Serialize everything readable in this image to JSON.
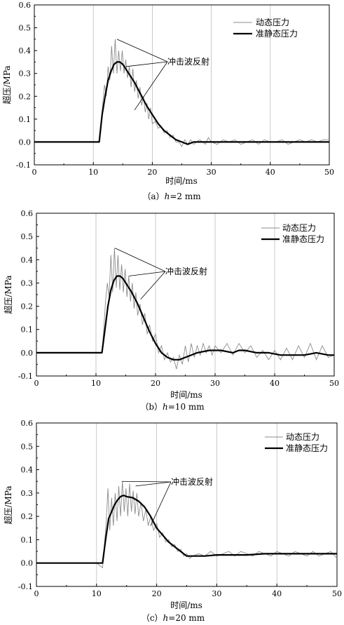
{
  "chart_data": [
    {
      "type": "line",
      "caption": "（a）h=2 mm",
      "caption_prefix": "（a）",
      "caption_var": "h",
      "caption_value": "=2 mm",
      "xlabel": "时间/ms",
      "ylabel": "超压/MPa",
      "xlim": [
        0,
        50
      ],
      "ylim": [
        -0.1,
        0.6
      ],
      "xticks": [
        0,
        10,
        20,
        30,
        40,
        50
      ],
      "yticks": [
        -0.1,
        0.0,
        0.1,
        0.2,
        0.3,
        0.4,
        0.5,
        0.6
      ],
      "grid": "vertical",
      "legend_position": "top-right",
      "annotation": "冲击波反射",
      "series": [
        {
          "name": "动态压力",
          "color": "#8c8c8c",
          "x": [
            0,
            5,
            10,
            11,
            11.3,
            11.6,
            11.9,
            12.2,
            12.5,
            12.8,
            13.1,
            13.4,
            13.7,
            14.0,
            14.3,
            14.6,
            14.9,
            15.2,
            15.5,
            15.8,
            16.1,
            16.4,
            16.7,
            17.0,
            17.3,
            17.6,
            17.9,
            18.2,
            18.5,
            18.8,
            19.1,
            19.4,
            19.7,
            20.0,
            20.5,
            21.0,
            21.5,
            22.0,
            22.5,
            23.0,
            23.5,
            24.0,
            24.5,
            25.0,
            25.5,
            26.0,
            26.5,
            27.0,
            27.5,
            28.0,
            28.5,
            29.0,
            29.5,
            30.0,
            31.0,
            32.0,
            33.0,
            34.0,
            35.0,
            36.0,
            37.0,
            38.0,
            39.0,
            40.0,
            41.0,
            42.0,
            43.0,
            44.0,
            45.0,
            46.0,
            47.0,
            48.0,
            49.0,
            50.0
          ],
          "y": [
            0.0,
            0.0,
            0.0,
            0.0,
            0.08,
            0.17,
            0.25,
            0.2,
            0.33,
            0.27,
            0.42,
            0.3,
            0.45,
            0.3,
            0.4,
            0.31,
            0.4,
            0.3,
            0.36,
            0.28,
            0.33,
            0.24,
            0.32,
            0.22,
            0.27,
            0.19,
            0.24,
            0.16,
            0.2,
            0.13,
            0.17,
            0.1,
            0.15,
            0.08,
            0.09,
            0.06,
            0.07,
            0.04,
            0.05,
            0.02,
            0.03,
            0.0,
            0.0,
            -0.02,
            0.01,
            -0.01,
            0.01,
            -0.01,
            0.0,
            0.01,
            0.0,
            -0.01,
            0.02,
            0.0,
            -0.01,
            0.01,
            0.0,
            0.01,
            -0.01,
            0.0,
            0.01,
            -0.01,
            0.01,
            0.0,
            0.0,
            0.01,
            -0.01,
            0.0,
            0.01,
            0.0,
            0.01,
            0.0,
            0.01,
            0.01
          ]
        },
        {
          "name": "准静态压力",
          "color": "#000000",
          "x": [
            0,
            5,
            10,
            11,
            11.5,
            12,
            12.5,
            13,
            13.5,
            14,
            14.5,
            15,
            16,
            17,
            18,
            19,
            20,
            21,
            22,
            23,
            24,
            25,
            26,
            27,
            28,
            30,
            32,
            35,
            40,
            45,
            50
          ],
          "y": [
            0.0,
            0.0,
            0.0,
            0.0,
            0.12,
            0.2,
            0.27,
            0.31,
            0.34,
            0.35,
            0.35,
            0.34,
            0.3,
            0.26,
            0.21,
            0.16,
            0.12,
            0.08,
            0.05,
            0.03,
            0.01,
            0.0,
            -0.01,
            0.0,
            0.0,
            0.0,
            0.0,
            0.0,
            0.0,
            0.0,
            0.0
          ]
        }
      ]
    },
    {
      "type": "line",
      "caption": "（b）h=10 mm",
      "caption_prefix": "（b）",
      "caption_var": "h",
      "caption_value": "=10 mm",
      "xlabel": "时间/ms",
      "ylabel": "超压/MPa",
      "xlim": [
        0,
        50
      ],
      "ylim": [
        -0.1,
        0.6
      ],
      "xticks": [
        0,
        10,
        20,
        30,
        40,
        50
      ],
      "yticks": [
        -0.1,
        0.0,
        0.1,
        0.2,
        0.3,
        0.4,
        0.5,
        0.6
      ],
      "grid": "vertical",
      "legend_position": "top-right",
      "annotation": "冲击波反射",
      "series": [
        {
          "name": "动态压力",
          "color": "#8c8c8c",
          "x": [
            0,
            5,
            10,
            11,
            11.3,
            11.6,
            11.9,
            12.2,
            12.5,
            12.8,
            13.1,
            13.4,
            13.7,
            14.0,
            14.3,
            14.6,
            14.9,
            15.2,
            15.5,
            15.8,
            16.1,
            16.4,
            16.7,
            17.0,
            17.4,
            17.8,
            18.2,
            18.6,
            19.0,
            19.5,
            20.0,
            20.5,
            21.0,
            21.5,
            22.0,
            22.5,
            23.0,
            23.5,
            24.0,
            24.5,
            25.0,
            25.5,
            26.0,
            26.5,
            27.0,
            27.5,
            28.0,
            28.5,
            29.0,
            29.5,
            30.0,
            31.0,
            32.0,
            33.0,
            34.0,
            35.0,
            36.0,
            37.0,
            38.0,
            39.0,
            40.0,
            41.0,
            42.0,
            43.0,
            44.0,
            45.0,
            46.0,
            47.0,
            48.0,
            49.0,
            50.0
          ],
          "y": [
            0.0,
            0.0,
            0.0,
            0.0,
            0.1,
            0.22,
            0.3,
            0.24,
            0.42,
            0.26,
            0.45,
            0.28,
            0.42,
            0.27,
            0.38,
            0.26,
            0.36,
            0.24,
            0.33,
            0.22,
            0.3,
            0.19,
            0.26,
            0.16,
            0.21,
            0.12,
            0.17,
            0.08,
            0.12,
            0.05,
            0.08,
            0.0,
            0.03,
            -0.03,
            0.0,
            -0.04,
            -0.02,
            -0.07,
            -0.01,
            -0.05,
            0.03,
            -0.04,
            0.04,
            -0.02,
            0.03,
            -0.01,
            0.04,
            0.0,
            0.03,
            -0.01,
            0.03,
            0.0,
            0.04,
            -0.01,
            0.04,
            0.0,
            0.03,
            -0.02,
            0.01,
            -0.03,
            0.01,
            -0.03,
            0.02,
            -0.03,
            0.03,
            -0.02,
            0.04,
            -0.03,
            0.03,
            -0.02,
            -0.01
          ]
        },
        {
          "name": "准静态压力",
          "color": "#000000",
          "x": [
            0,
            5,
            10,
            11,
            11.5,
            12,
            12.5,
            13,
            13.5,
            14,
            14.5,
            15,
            16,
            17,
            18,
            19,
            20,
            21,
            22,
            23,
            24,
            25,
            27,
            29,
            31,
            33,
            34,
            35,
            37,
            39,
            41,
            43,
            45,
            47,
            49,
            50
          ],
          "y": [
            0.0,
            0.0,
            0.0,
            0.0,
            0.1,
            0.2,
            0.27,
            0.31,
            0.33,
            0.33,
            0.32,
            0.3,
            0.26,
            0.21,
            0.15,
            0.09,
            0.04,
            0.0,
            -0.02,
            -0.03,
            -0.03,
            -0.02,
            0.0,
            0.01,
            0.01,
            0.0,
            0.01,
            0.01,
            0.0,
            0.0,
            -0.01,
            -0.01,
            -0.01,
            0.0,
            -0.01,
            -0.01
          ]
        }
      ]
    },
    {
      "type": "line",
      "caption": "（c）h=20 mm",
      "caption_prefix": "（c）",
      "caption_var": "h",
      "caption_value": "=20 mm",
      "xlabel": "时间/ms",
      "ylabel": "超压/MPa",
      "xlim": [
        0,
        50
      ],
      "ylim": [
        -0.1,
        0.6
      ],
      "xticks": [
        0,
        10,
        20,
        30,
        40,
        50
      ],
      "yticks": [
        -0.1,
        0.0,
        0.1,
        0.2,
        0.3,
        0.4,
        0.5,
        0.6
      ],
      "grid": "vertical",
      "legend_position": "top-right",
      "annotation": "冲击波反射",
      "series": [
        {
          "name": "动态压力",
          "color": "#8c8c8c",
          "x": [
            0,
            5,
            10,
            11,
            11.3,
            11.6,
            11.9,
            12.2,
            12.5,
            12.8,
            13.1,
            13.4,
            13.7,
            14.0,
            14.3,
            14.6,
            14.9,
            15.2,
            15.5,
            15.8,
            16.1,
            16.4,
            16.7,
            17.0,
            17.4,
            17.8,
            18.2,
            18.6,
            19.0,
            19.5,
            20.0,
            20.5,
            21.0,
            21.5,
            22.0,
            22.5,
            23.0,
            23.5,
            24.0,
            24.5,
            25.0,
            25.5,
            26.0,
            27.0,
            28.0,
            29.0,
            30.0,
            31.0,
            32.0,
            33.0,
            34.0,
            35.0,
            36.0,
            37.0,
            38.0,
            39.0,
            40.0,
            41.0,
            42.0,
            43.0,
            44.0,
            45.0,
            46.0,
            47.0,
            48.0,
            49.0,
            50.0
          ],
          "y": [
            0.0,
            0.0,
            0.0,
            -0.02,
            0.08,
            0.17,
            0.32,
            0.14,
            0.28,
            0.16,
            0.3,
            0.18,
            0.33,
            0.2,
            0.35,
            0.22,
            0.32,
            0.2,
            0.34,
            0.22,
            0.31,
            0.21,
            0.3,
            0.2,
            0.26,
            0.18,
            0.23,
            0.16,
            0.2,
            0.14,
            0.17,
            0.11,
            0.13,
            0.09,
            0.1,
            0.07,
            0.08,
            0.05,
            0.06,
            0.03,
            0.04,
            0.02,
            0.03,
            0.04,
            0.03,
            0.05,
            0.03,
            0.04,
            0.05,
            0.03,
            0.05,
            0.04,
            0.03,
            0.05,
            0.04,
            0.03,
            0.05,
            0.04,
            0.03,
            0.05,
            0.04,
            0.03,
            0.05,
            0.03,
            0.04,
            0.05,
            0.02
          ]
        },
        {
          "name": "准静态压力",
          "color": "#000000",
          "x": [
            0,
            5,
            10,
            11,
            11.5,
            12,
            12.5,
            13,
            13.5,
            14,
            14.5,
            15,
            16,
            17,
            18,
            19,
            20,
            21,
            22,
            23,
            24,
            25,
            26,
            28,
            30,
            32,
            35,
            38,
            40,
            42,
            45,
            48,
            50
          ],
          "y": [
            0.0,
            0.0,
            0.0,
            0.0,
            0.1,
            0.19,
            0.22,
            0.25,
            0.27,
            0.285,
            0.29,
            0.285,
            0.28,
            0.265,
            0.24,
            0.2,
            0.15,
            0.12,
            0.09,
            0.07,
            0.05,
            0.03,
            0.03,
            0.03,
            0.035,
            0.035,
            0.035,
            0.04,
            0.04,
            0.04,
            0.04,
            0.04,
            0.04
          ]
        }
      ]
    }
  ]
}
